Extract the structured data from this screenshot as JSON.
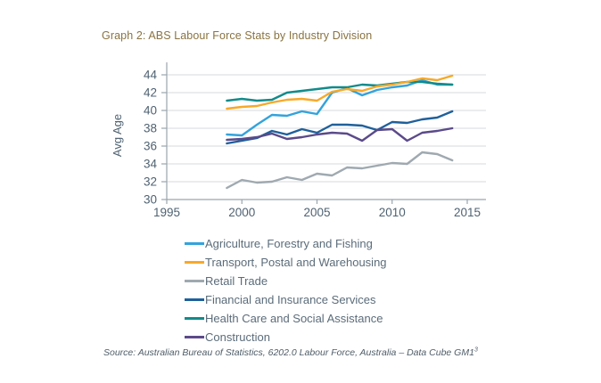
{
  "title": "Graph 2: ABS Labour Force Stats by Industry Division",
  "source": {
    "text": "Source: Australian Bureau of Statistics, 6202.0 Labour Force, Australia – Data Cube GM1",
    "superscript": "3"
  },
  "colors": {
    "title_text": "#8a7340",
    "axis_line": "#9aa5ad",
    "gridline": "#d7dadd",
    "tick_text": "#4f6272",
    "legend_text": "#5b6c7a",
    "source_text": "#4f5d68"
  },
  "chart_data": {
    "type": "line",
    "title": "Graph 2: ABS Labour Force Stats by Industry Division",
    "xlabel": "",
    "ylabel": "Avg Age",
    "ylim": [
      30,
      44
    ],
    "ytick_step": 2,
    "xlim": [
      1995,
      2015
    ],
    "xticks": [
      1995,
      2000,
      2005,
      2010,
      2015
    ],
    "grid": true,
    "legend_position": "bottom-left",
    "x": [
      1999,
      2000,
      2001,
      2002,
      2003,
      2004,
      2005,
      2006,
      2007,
      2008,
      2009,
      2010,
      2011,
      2012,
      2013,
      2014
    ],
    "series": [
      {
        "name": "Agriculture, Forestry and Fishing",
        "color": "#33a3dc",
        "values": [
          37.3,
          37.2,
          38.4,
          39.5,
          39.4,
          39.9,
          39.6,
          42.0,
          42.5,
          41.7,
          42.3,
          42.6,
          42.8,
          43.4,
          42.9,
          42.9
        ]
      },
      {
        "name": "Transport, Postal and Warehousing",
        "color": "#f7a928",
        "values": [
          40.2,
          40.4,
          40.5,
          40.9,
          41.2,
          41.3,
          41.1,
          42.1,
          42.4,
          42.2,
          42.7,
          42.9,
          43.2,
          43.6,
          43.4,
          43.9
        ]
      },
      {
        "name": "Retail Trade",
        "color": "#9fa9b0",
        "values": [
          31.3,
          32.2,
          31.9,
          32.0,
          32.5,
          32.2,
          32.9,
          32.7,
          33.6,
          33.5,
          33.8,
          34.1,
          34.0,
          35.3,
          35.1,
          34.4
        ]
      },
      {
        "name": "Financial and Insurance Services",
        "color": "#1f609b",
        "values": [
          36.3,
          36.6,
          36.9,
          37.7,
          37.3,
          37.9,
          37.5,
          38.4,
          38.4,
          38.3,
          37.8,
          38.7,
          38.6,
          39.0,
          39.2,
          39.9
        ]
      },
      {
        "name": "Health Care and Social Assistance",
        "color": "#118b8b",
        "values": [
          41.1,
          41.3,
          41.1,
          41.2,
          42.0,
          42.2,
          42.4,
          42.6,
          42.6,
          42.9,
          42.8,
          43.0,
          43.2,
          43.2,
          43.0,
          42.9
        ]
      },
      {
        "name": "Construction",
        "color": "#5b4a8a",
        "values": [
          36.7,
          36.8,
          37.0,
          37.4,
          36.8,
          37.0,
          37.3,
          37.5,
          37.4,
          36.6,
          37.8,
          37.9,
          36.6,
          37.5,
          37.7,
          38.0
        ]
      }
    ]
  }
}
